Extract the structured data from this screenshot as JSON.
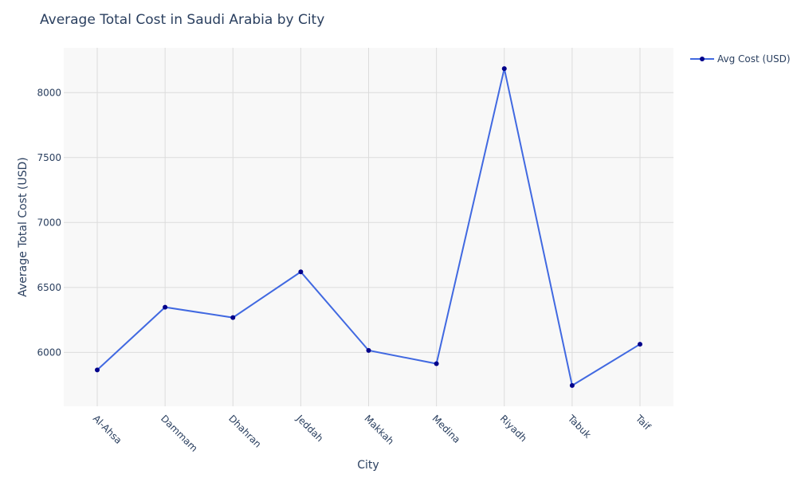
{
  "chart_data": {
    "type": "line",
    "title": "Average Total Cost in Saudi Arabia by City",
    "xlabel": "City",
    "ylabel": "Average Total Cost (USD)",
    "categories": [
      "Al-Ahsa",
      "Dammam",
      "Dhahran",
      "Jeddah",
      "Makkah",
      "Medina",
      "Riyadh",
      "Tabuk",
      "Taif"
    ],
    "series": [
      {
        "name": "Avg Cost (USD)",
        "values": [
          5865,
          6348,
          6268,
          6620,
          6015,
          5913,
          8185,
          5745,
          6063
        ]
      }
    ],
    "yticks": [
      6000,
      6500,
      7000,
      7500,
      8000
    ],
    "ylim": [
      5585,
      8345
    ],
    "grid": true,
    "legend": "top-right",
    "colors": {
      "line": "#4169e1",
      "marker": "#00008b",
      "plot_bg": "#f8f8f8",
      "grid": "#dcdcdc",
      "text": "#2a3f5f"
    }
  }
}
